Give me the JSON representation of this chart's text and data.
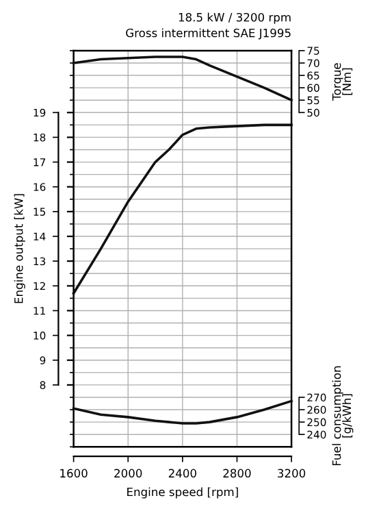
{
  "chart_data": {
    "type": "line",
    "title": "18.5 kW / 3200 rpm",
    "subtitle": "Gross intermittent SAE J1995",
    "xlabel": "Engine speed [rpm]",
    "ylabel": "Engine output [kW]",
    "y2label": "Torque\n[Nm]",
    "y3label": "Fuel consumption\n[g/kWh]",
    "x": [
      1600,
      1800,
      2000,
      2200,
      2300,
      2400,
      2500,
      2600,
      2800,
      3000,
      3200
    ],
    "series": [
      {
        "color": "#111111",
        "axis": "y",
        "values": [
          11.7,
          13.5,
          15.4,
          17.0,
          17.5,
          18.1,
          18.35,
          18.4,
          18.45,
          18.5,
          18.5
        ]
      },
      {
        "color": "#111111",
        "axis": "y2",
        "values": [
          70,
          71.5,
          72,
          72.5,
          72.5,
          72.5,
          71.5,
          69,
          64.5,
          60,
          55
        ]
      },
      {
        "color": "#111111",
        "axis": "y3",
        "values": [
          261,
          256,
          254,
          251,
          250,
          249,
          249,
          250,
          254,
          260,
          267
        ]
      }
    ],
    "xlim": [
      1600,
      3200
    ],
    "xticks": [
      1600,
      2000,
      2400,
      2800,
      3200
    ],
    "ylim": [
      5.5,
      21.5
    ],
    "yticks": [
      8,
      9,
      10,
      11,
      12,
      13,
      14,
      15,
      16,
      17,
      18,
      19
    ],
    "y2lim": [
      -85,
      75
    ],
    "y2ticks": [
      50,
      55,
      60,
      65,
      70,
      75
    ],
    "y3lim": [
      230,
      550
    ],
    "y3ticks": [
      240,
      250,
      260,
      270
    ],
    "grid": true,
    "line_style": "solid",
    "marker": "none"
  }
}
